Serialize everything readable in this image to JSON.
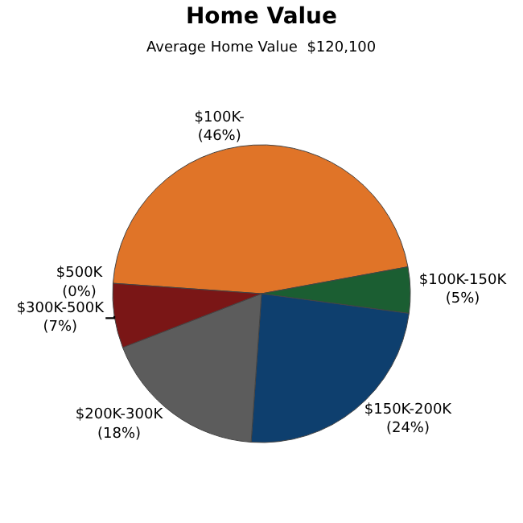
{
  "chart_data": {
    "type": "pie",
    "title": "Home Value",
    "subtitle": "Average Home Value  $120,100",
    "categories": [
      "$100K-",
      "$100K-150K",
      "$150K-200K",
      "$200K-300K",
      "$300K-500K",
      "$500K"
    ],
    "values": [
      46,
      5,
      24,
      18,
      7,
      0
    ],
    "value_labels": [
      "(46%)",
      "(5%)",
      "(24%)",
      "(18%)",
      "(7%)",
      "(0%)"
    ],
    "colors": [
      "#e07428",
      "#1b5e32",
      "#0e3f6e",
      "#5c5c5c",
      "#7a1616",
      "#a0a0a0"
    ],
    "legend": false
  }
}
